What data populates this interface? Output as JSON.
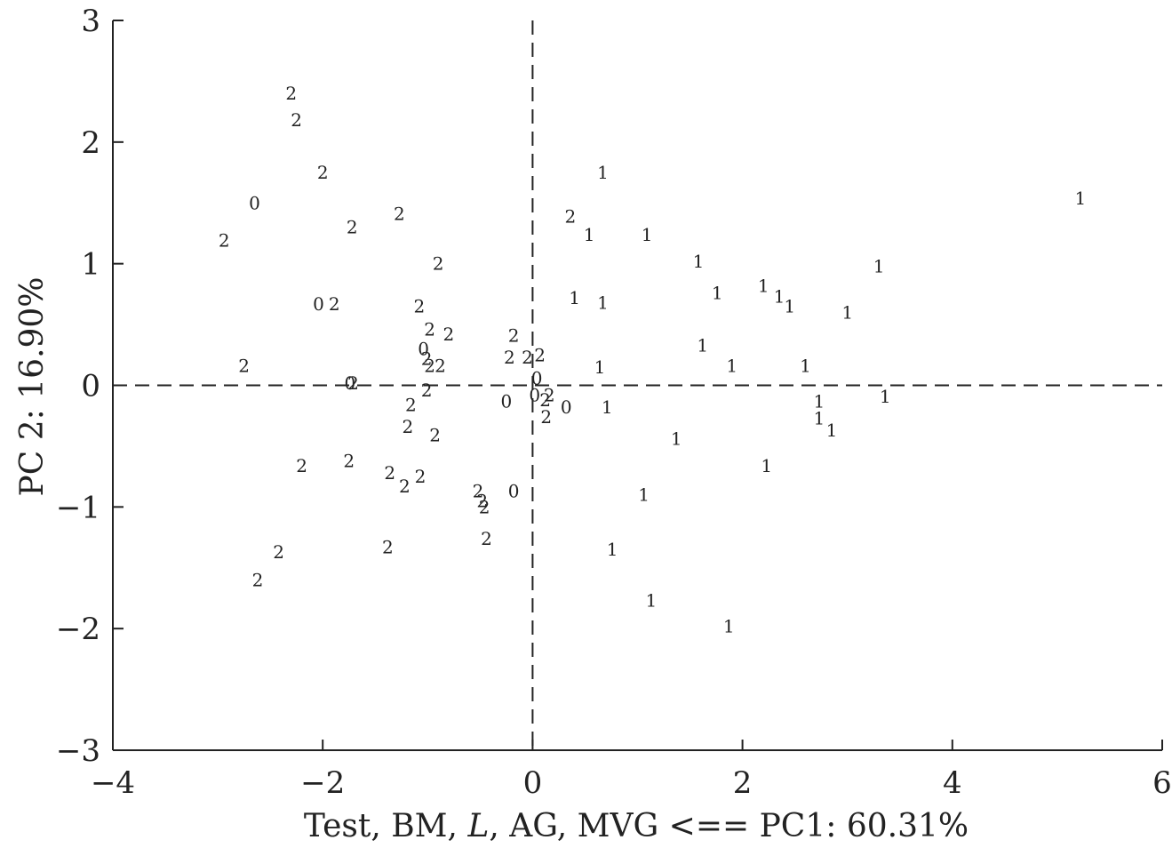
{
  "chart_data": {
    "type": "scatter",
    "title": "",
    "xlabel": "Test, BM, L, AG, MVG <== PC1: 60.31%",
    "xlabel_parts": [
      {
        "text": "Test, BM, ",
        "italic": false
      },
      {
        "text": "L",
        "italic": true
      },
      {
        "text": ", AG, MVG <== PC1: 60.31%",
        "italic": false
      }
    ],
    "ylabel": "PC 2: 16.90%",
    "xlim": [
      -4,
      6
    ],
    "ylim": [
      -3,
      3
    ],
    "x_ticks": [
      -4,
      -2,
      0,
      2,
      4,
      6
    ],
    "y_ticks": [
      -3,
      -2,
      -1,
      0,
      1,
      2,
      3
    ],
    "x_tick_labels": [
      "−4",
      "−2",
      "0",
      "2",
      "4",
      "6"
    ],
    "y_tick_labels": [
      "−3",
      "−2",
      "−1",
      "0",
      "1",
      "2",
      "3"
    ],
    "grid": false,
    "reference_lines": {
      "x": 0,
      "y": 0,
      "style": "dashed"
    },
    "colors": {
      "ink": "#222222"
    },
    "points": [
      {
        "x": -2.3,
        "y": 2.4,
        "label": "2"
      },
      {
        "x": -2.25,
        "y": 2.18,
        "label": "2"
      },
      {
        "x": -2.0,
        "y": 1.75,
        "label": "2"
      },
      {
        "x": -2.65,
        "y": 1.5,
        "label": "0"
      },
      {
        "x": -1.72,
        "y": 1.3,
        "label": "2"
      },
      {
        "x": -1.27,
        "y": 1.41,
        "label": "2"
      },
      {
        "x": -2.94,
        "y": 1.19,
        "label": "2"
      },
      {
        "x": -0.9,
        "y": 1.0,
        "label": "2"
      },
      {
        "x": -2.04,
        "y": 0.67,
        "label": "0"
      },
      {
        "x": -1.89,
        "y": 0.67,
        "label": "2"
      },
      {
        "x": -1.08,
        "y": 0.65,
        "label": "2"
      },
      {
        "x": -0.98,
        "y": 0.46,
        "label": "2"
      },
      {
        "x": -0.8,
        "y": 0.42,
        "label": "2"
      },
      {
        "x": -1.04,
        "y": 0.3,
        "label": "0"
      },
      {
        "x": -1.01,
        "y": 0.22,
        "label": "2"
      },
      {
        "x": -0.98,
        "y": 0.16,
        "label": "2"
      },
      {
        "x": -0.88,
        "y": 0.16,
        "label": "2"
      },
      {
        "x": -2.75,
        "y": 0.16,
        "label": "2"
      },
      {
        "x": -1.74,
        "y": 0.02,
        "label": "0"
      },
      {
        "x": -1.71,
        "y": 0.02,
        "label": "2"
      },
      {
        "x": -1.01,
        "y": -0.04,
        "label": "2"
      },
      {
        "x": -1.16,
        "y": -0.16,
        "label": "2"
      },
      {
        "x": -1.19,
        "y": -0.34,
        "label": "2"
      },
      {
        "x": -0.93,
        "y": -0.41,
        "label": "2"
      },
      {
        "x": -2.2,
        "y": -0.66,
        "label": "2"
      },
      {
        "x": -1.75,
        "y": -0.62,
        "label": "2"
      },
      {
        "x": -1.36,
        "y": -0.72,
        "label": "2"
      },
      {
        "x": -1.22,
        "y": -0.83,
        "label": "2"
      },
      {
        "x": -1.07,
        "y": -0.75,
        "label": "2"
      },
      {
        "x": -0.52,
        "y": -0.87,
        "label": "2"
      },
      {
        "x": -0.48,
        "y": -0.95,
        "label": "2"
      },
      {
        "x": -0.46,
        "y": -1.0,
        "label": "2"
      },
      {
        "x": -0.18,
        "y": -0.87,
        "label": "0"
      },
      {
        "x": -0.44,
        "y": -1.26,
        "label": "2"
      },
      {
        "x": -1.38,
        "y": -1.33,
        "label": "2"
      },
      {
        "x": -2.42,
        "y": -1.37,
        "label": "2"
      },
      {
        "x": -2.62,
        "y": -1.6,
        "label": "2"
      },
      {
        "x": -0.18,
        "y": 0.41,
        "label": "2"
      },
      {
        "x": -0.22,
        "y": 0.23,
        "label": "2"
      },
      {
        "x": -0.05,
        "y": 0.23,
        "label": "2"
      },
      {
        "x": 0.07,
        "y": 0.25,
        "label": "2"
      },
      {
        "x": 0.04,
        "y": 0.06,
        "label": "0"
      },
      {
        "x": -0.25,
        "y": -0.13,
        "label": "0"
      },
      {
        "x": 0.02,
        "y": -0.08,
        "label": "0"
      },
      {
        "x": 0.12,
        "y": -0.12,
        "label": "2"
      },
      {
        "x": 0.16,
        "y": -0.08,
        "label": "2"
      },
      {
        "x": 0.32,
        "y": -0.18,
        "label": "0"
      },
      {
        "x": 0.13,
        "y": -0.26,
        "label": "2"
      },
      {
        "x": 0.36,
        "y": 1.39,
        "label": "2"
      },
      {
        "x": 0.67,
        "y": 1.75,
        "label": "1"
      },
      {
        "x": 0.54,
        "y": 1.24,
        "label": "1"
      },
      {
        "x": 1.09,
        "y": 1.24,
        "label": "1"
      },
      {
        "x": 1.58,
        "y": 1.02,
        "label": "1"
      },
      {
        "x": 1.76,
        "y": 0.76,
        "label": "1"
      },
      {
        "x": 2.2,
        "y": 0.82,
        "label": "1"
      },
      {
        "x": 2.35,
        "y": 0.73,
        "label": "1"
      },
      {
        "x": 2.45,
        "y": 0.65,
        "label": "1"
      },
      {
        "x": 3.0,
        "y": 0.6,
        "label": "1"
      },
      {
        "x": 3.3,
        "y": 0.98,
        "label": "1"
      },
      {
        "x": 5.22,
        "y": 1.54,
        "label": "1"
      },
      {
        "x": 0.4,
        "y": 0.72,
        "label": "1"
      },
      {
        "x": 0.67,
        "y": 0.68,
        "label": "1"
      },
      {
        "x": 1.62,
        "y": 0.33,
        "label": "1"
      },
      {
        "x": 0.64,
        "y": 0.15,
        "label": "1"
      },
      {
        "x": 1.9,
        "y": 0.16,
        "label": "1"
      },
      {
        "x": 2.6,
        "y": 0.16,
        "label": "1"
      },
      {
        "x": 2.73,
        "y": -0.13,
        "label": "1"
      },
      {
        "x": 3.36,
        "y": -0.09,
        "label": "1"
      },
      {
        "x": 0.71,
        "y": -0.18,
        "label": "1"
      },
      {
        "x": 2.73,
        "y": -0.27,
        "label": "1"
      },
      {
        "x": 2.85,
        "y": -0.37,
        "label": "1"
      },
      {
        "x": 1.37,
        "y": -0.44,
        "label": "1"
      },
      {
        "x": 2.23,
        "y": -0.66,
        "label": "1"
      },
      {
        "x": 1.06,
        "y": -0.9,
        "label": "1"
      },
      {
        "x": 0.76,
        "y": -1.35,
        "label": "1"
      },
      {
        "x": 1.13,
        "y": -1.77,
        "label": "1"
      },
      {
        "x": 1.87,
        "y": -1.98,
        "label": "1"
      }
    ]
  }
}
